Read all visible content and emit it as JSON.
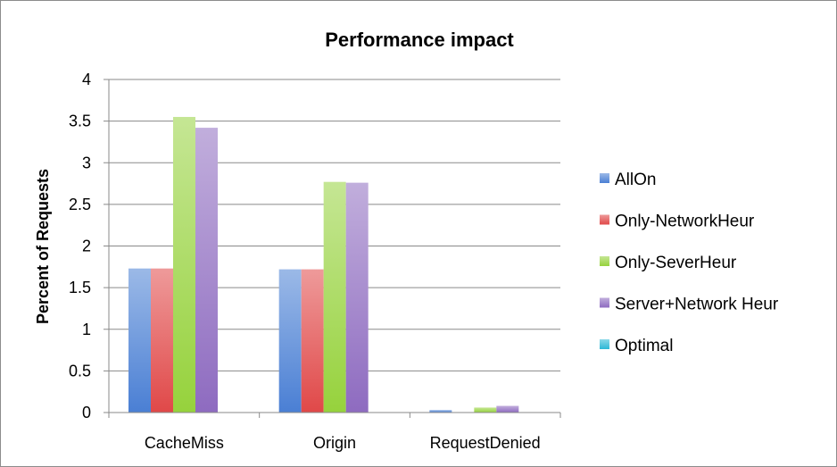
{
  "chart_data": {
    "type": "bar",
    "title": "Performance impact",
    "xlabel": "",
    "ylabel": "Percent of Requests",
    "ylim": [
      0,
      4
    ],
    "yticks": [
      "0",
      "0.5",
      "1",
      "1.5",
      "2",
      "2.5",
      "3",
      "3.5",
      "4"
    ],
    "grid": "horizontal",
    "legend_position": "right",
    "categories": [
      "CacheMiss",
      "Origin",
      "RequestDenied"
    ],
    "series": [
      {
        "name": "AllOn",
        "color": "#4a7fd4",
        "values": [
          1.73,
          1.72,
          0.03
        ]
      },
      {
        "name": "Only-NetworkHeur",
        "color": "#e04848",
        "values": [
          1.73,
          1.72,
          0.0
        ]
      },
      {
        "name": "Only-SeverHeur",
        "color": "#96d23c",
        "values": [
          3.55,
          2.77,
          0.06
        ]
      },
      {
        "name": "Server+Network Heur",
        "color": "#8e6bc0",
        "values": [
          3.42,
          2.76,
          0.08
        ]
      },
      {
        "name": "Optimal",
        "color": "#2cb8d6",
        "values": [
          0.0,
          0.0,
          0.0
        ]
      }
    ]
  }
}
